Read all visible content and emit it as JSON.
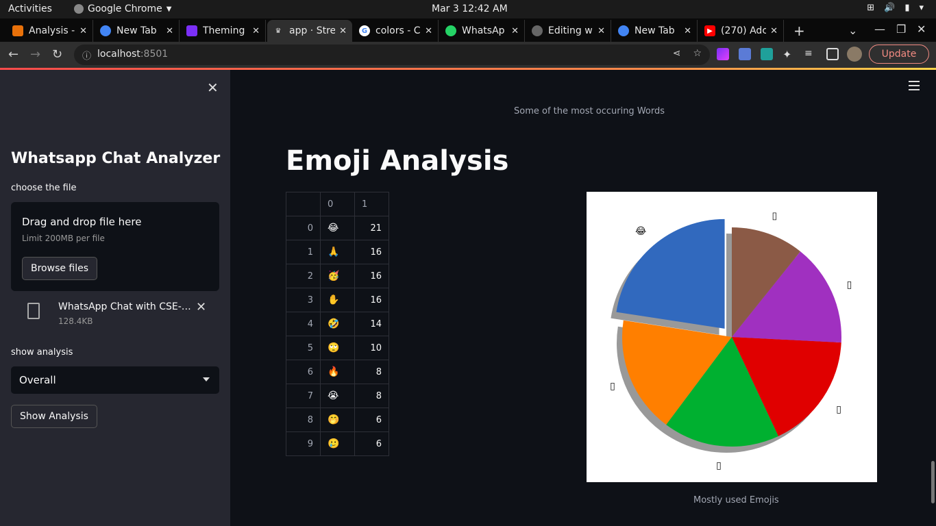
{
  "os": {
    "activities": "Activities",
    "app_name": "Google Chrome",
    "clock": "Mar 3  12:42 AM"
  },
  "tabs": [
    {
      "label": "Analysis -",
      "color": "#e8710a"
    },
    {
      "label": "New Tab",
      "color": "#4285f4"
    },
    {
      "label": "Theming",
      "color": "#7b2ff7"
    },
    {
      "label": "app · Stre",
      "color": "#ff4b4b"
    },
    {
      "label": "colors - C",
      "color": "#4285f4"
    },
    {
      "label": "WhatsAp",
      "color": "#25d366"
    },
    {
      "label": "Editing w",
      "color": "#666666"
    },
    {
      "label": "New Tab",
      "color": "#4285f4"
    },
    {
      "label": "(270) Adc",
      "color": "#ff0000"
    }
  ],
  "browser": {
    "url_host": "localhost",
    "url_port": ":8501",
    "update_label": "Update"
  },
  "sidebar": {
    "title": "Whatsapp Chat Analyzer",
    "file_label": "choose the file",
    "drop_text": "Drag and drop file here",
    "limit_text": "Limit 200MB per file",
    "browse_label": "Browse files",
    "file_name": "WhatsApp Chat with CSE-0...",
    "file_size": "128.4KB",
    "analysis_label": "show analysis",
    "selected": "Overall",
    "show_button": "Show Analysis"
  },
  "main": {
    "words_caption": "Some of the most occuring Words",
    "heading": "Emoji Analysis",
    "table_headers": [
      "",
      "0",
      "1"
    ],
    "table_rows": [
      [
        "0",
        "😂",
        "21"
      ],
      [
        "1",
        "🙏",
        "16"
      ],
      [
        "2",
        "🥳",
        "16"
      ],
      [
        "3",
        "✋",
        "16"
      ],
      [
        "4",
        "🤣",
        "14"
      ],
      [
        "5",
        "🙄",
        "10"
      ],
      [
        "6",
        "🔥",
        "8"
      ],
      [
        "7",
        "😭",
        "8"
      ],
      [
        "8",
        "🤭",
        "6"
      ],
      [
        "9",
        "🥲",
        "6"
      ]
    ],
    "chart_caption": "Mostly used Emojis"
  },
  "chart_data": {
    "type": "pie",
    "categories": [
      "😂",
      "🙏",
      "🥳",
      "✋",
      "🤣",
      "🙄"
    ],
    "values": [
      21,
      16,
      16,
      16,
      14,
      10
    ],
    "colors": [
      "#3169be",
      "#ff7f00",
      "#00b030",
      "#e00000",
      "#a030c0",
      "#8b5a46"
    ],
    "label_glyphs": [
      "😂",
      "▯",
      "▯",
      "▯",
      "▯",
      "▯"
    ],
    "explode_first": true,
    "shadow": true
  }
}
